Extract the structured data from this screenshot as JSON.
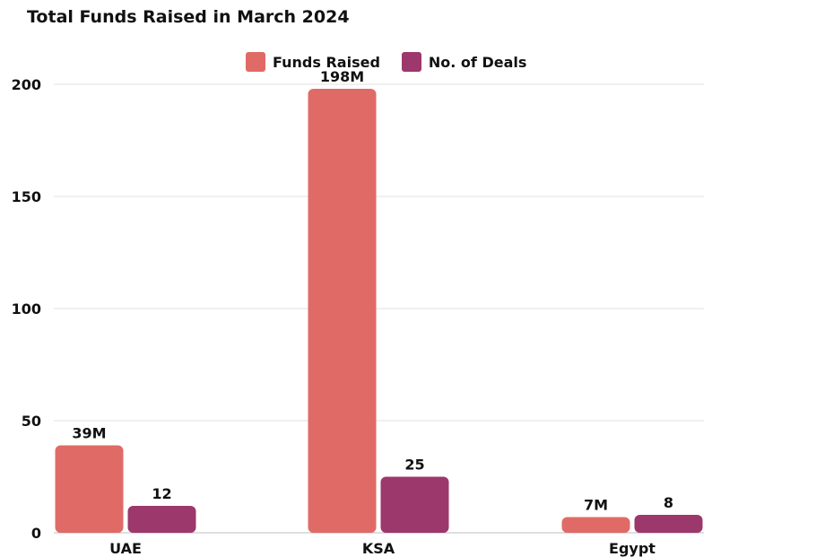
{
  "chart_data": {
    "type": "bar",
    "title": "Total Funds Raised in March 2024",
    "categories": [
      "UAE",
      "KSA",
      "Egypt"
    ],
    "series": [
      {
        "name": "Funds Raised",
        "color": "#e06b66",
        "values": [
          39,
          198,
          7
        ],
        "labels": [
          "39M",
          "198M",
          "7M"
        ]
      },
      {
        "name": "No. of Deals",
        "color": "#9c386b",
        "values": [
          12,
          25,
          8
        ],
        "labels": [
          "12",
          "25",
          "8"
        ]
      }
    ],
    "y_ticks": [
      0,
      50,
      100,
      150,
      200
    ],
    "ylim": [
      0,
      200
    ],
    "xlabel": "",
    "ylabel": "",
    "grid": true,
    "legend_position": "top-center"
  }
}
